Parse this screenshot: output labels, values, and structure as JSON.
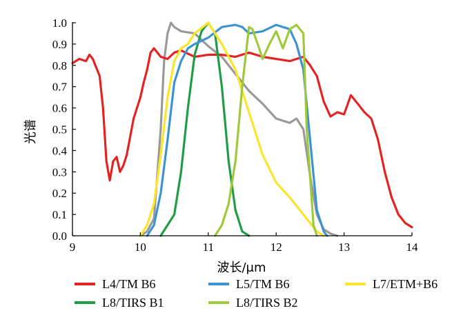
{
  "chart_data": {
    "type": "line",
    "title": "",
    "xlabel": "波长/μm",
    "ylabel": "光谱",
    "xlim": [
      9,
      14
    ],
    "ylim": [
      0.0,
      1.0
    ],
    "xticks": [
      "9",
      "10",
      "11",
      "12",
      "13",
      "14"
    ],
    "yticks": [
      "0.0",
      "0.1",
      "0.2",
      "0.3",
      "0.4",
      "0.5",
      "0.6",
      "0.7",
      "0.8",
      "0.9",
      "1.0"
    ],
    "grid": false,
    "legend_position": "bottom",
    "series": [
      {
        "name": "L4/TM B6",
        "color": "#e32322",
        "x": [
          9.0,
          9.1,
          9.2,
          9.25,
          9.3,
          9.4,
          9.45,
          9.5,
          9.55,
          9.6,
          9.65,
          9.7,
          9.75,
          9.8,
          9.9,
          10.0,
          10.05,
          10.1,
          10.15,
          10.2,
          10.3,
          10.4,
          10.5,
          10.6,
          10.8,
          11.0,
          11.2,
          11.4,
          11.6,
          11.8,
          12.0,
          12.2,
          12.4,
          12.5,
          12.6,
          12.7,
          12.8,
          12.9,
          13.0,
          13.1,
          13.2,
          13.3,
          13.4,
          13.5,
          13.6,
          13.7,
          13.8,
          13.9,
          14.0
        ],
        "y": [
          0.81,
          0.83,
          0.82,
          0.85,
          0.83,
          0.75,
          0.6,
          0.35,
          0.26,
          0.35,
          0.37,
          0.3,
          0.33,
          0.38,
          0.55,
          0.65,
          0.72,
          0.78,
          0.86,
          0.88,
          0.84,
          0.83,
          0.86,
          0.87,
          0.84,
          0.85,
          0.85,
          0.84,
          0.86,
          0.84,
          0.83,
          0.82,
          0.84,
          0.8,
          0.75,
          0.63,
          0.56,
          0.58,
          0.57,
          0.66,
          0.62,
          0.58,
          0.55,
          0.45,
          0.3,
          0.18,
          0.1,
          0.06,
          0.04
        ]
      },
      {
        "name": "L5/TM B6",
        "color": "#3d93d0",
        "x": [
          10.1,
          10.2,
          10.3,
          10.4,
          10.5,
          10.6,
          10.7,
          10.8,
          11.0,
          11.2,
          11.4,
          11.5,
          11.6,
          11.8,
          12.0,
          12.2,
          12.3,
          12.4,
          12.5,
          12.6,
          12.7,
          12.75
        ],
        "y": [
          0.0,
          0.05,
          0.2,
          0.45,
          0.72,
          0.82,
          0.88,
          0.9,
          0.93,
          0.98,
          0.99,
          0.98,
          0.95,
          0.96,
          0.99,
          0.97,
          0.9,
          0.78,
          0.45,
          0.12,
          0.02,
          0.0
        ]
      },
      {
        "name": "L7/ETM+B6",
        "color": "#fbe42c",
        "x": [
          10.0,
          10.1,
          10.2,
          10.3,
          10.4,
          10.5,
          10.6,
          10.7,
          10.8,
          11.0,
          11.2,
          11.4,
          11.6,
          11.8,
          12.0,
          12.2,
          12.4,
          12.6,
          12.7
        ],
        "y": [
          0.0,
          0.05,
          0.15,
          0.38,
          0.65,
          0.82,
          0.88,
          0.9,
          0.95,
          1.0,
          0.9,
          0.78,
          0.58,
          0.38,
          0.25,
          0.18,
          0.1,
          0.02,
          0.0
        ]
      },
      {
        "name": "L8/TIRS B1",
        "color": "#1f9c46",
        "x": [
          10.3,
          10.5,
          10.6,
          10.7,
          10.8,
          10.9,
          11.0,
          11.1,
          11.2,
          11.3,
          11.4,
          11.5,
          11.6
        ],
        "y": [
          0.0,
          0.1,
          0.3,
          0.6,
          0.85,
          0.96,
          1.0,
          0.95,
          0.7,
          0.35,
          0.12,
          0.02,
          0.0
        ]
      },
      {
        "name": "L8/TIRS B2",
        "color": "#9dc93a",
        "x": [
          11.1,
          11.2,
          11.3,
          11.4,
          11.5,
          11.6,
          11.65,
          11.75,
          11.8,
          11.9,
          12.0,
          12.1,
          12.2,
          12.3,
          12.35,
          12.4,
          12.45,
          12.55,
          12.6
        ],
        "y": [
          0.0,
          0.05,
          0.15,
          0.35,
          0.7,
          0.98,
          0.97,
          0.88,
          0.83,
          0.9,
          0.96,
          0.88,
          0.97,
          0.99,
          0.97,
          0.95,
          0.5,
          0.05,
          0.0
        ]
      },
      {
        "name": "",
        "color": "#999999",
        "x": [
          10.0,
          10.1,
          10.2,
          10.3,
          10.35,
          10.4,
          10.45,
          10.5,
          10.6,
          10.8,
          11.0,
          11.2,
          11.4,
          11.6,
          11.8,
          12.0,
          12.1,
          12.2,
          12.3,
          12.4,
          12.5,
          12.6,
          12.7,
          12.8,
          12.9
        ],
        "y": [
          0.0,
          0.02,
          0.08,
          0.5,
          0.82,
          0.95,
          1.0,
          0.98,
          0.96,
          0.95,
          0.89,
          0.84,
          0.76,
          0.68,
          0.62,
          0.55,
          0.54,
          0.53,
          0.55,
          0.5,
          0.28,
          0.1,
          0.03,
          0.01,
          0.0
        ]
      }
    ]
  }
}
